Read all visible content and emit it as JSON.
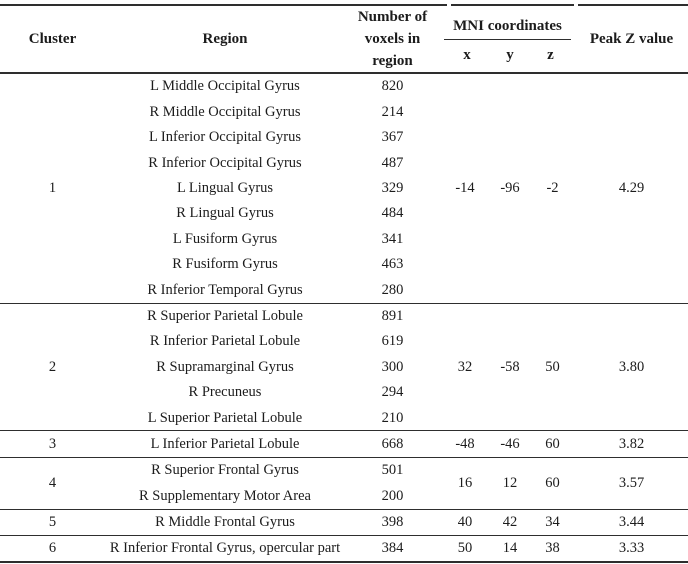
{
  "page": {
    "background": "#ffffff",
    "text_color": "#1c1c1c",
    "line_color": "#2e2e2e"
  },
  "table": {
    "headers": {
      "cluster": "Cluster",
      "region": "Region",
      "voxels_line1": "Number of",
      "voxels_line2": "voxels in region",
      "mni": "MNI coordinates",
      "x": "x",
      "y": "y",
      "z": "z",
      "peak": "Peak Z value"
    },
    "clusters": [
      {
        "cluster": "1",
        "x": "-14",
        "y": "-96",
        "z": "-2",
        "peak": "4.29",
        "regions": [
          {
            "region": "L Middle Occipital Gyrus",
            "voxels": "820"
          },
          {
            "region": "R Middle Occipital Gyrus",
            "voxels": "214"
          },
          {
            "region": "L Inferior Occipital Gyrus",
            "voxels": "367"
          },
          {
            "region": "R Inferior Occipital Gyrus",
            "voxels": "487"
          },
          {
            "region": "L Lingual Gyrus",
            "voxels": "329"
          },
          {
            "region": "R Lingual Gyrus",
            "voxels": "484"
          },
          {
            "region": "L Fusiform Gyrus",
            "voxels": "341"
          },
          {
            "region": "R Fusiform Gyrus",
            "voxels": "463"
          },
          {
            "region": "R Inferior Temporal Gyrus",
            "voxels": "280"
          }
        ]
      },
      {
        "cluster": "2",
        "x": "32",
        "y": "-58",
        "z": "50",
        "peak": "3.80",
        "regions": [
          {
            "region": "R Superior Parietal Lobule",
            "voxels": "891"
          },
          {
            "region": "R Inferior Parietal Lobule",
            "voxels": "619"
          },
          {
            "region": "R Supramarginal Gyrus",
            "voxels": "300"
          },
          {
            "region": "R Precuneus",
            "voxels": "294"
          },
          {
            "region": "L Superior Parietal Lobule",
            "voxels": "210"
          }
        ]
      },
      {
        "cluster": "3",
        "x": "-48",
        "y": "-46",
        "z": "60",
        "peak": "3.82",
        "regions": [
          {
            "region": "L Inferior Parietal Lobule",
            "voxels": "668"
          }
        ]
      },
      {
        "cluster": "4",
        "x": "16",
        "y": "12",
        "z": "60",
        "peak": "3.57",
        "regions": [
          {
            "region": "R Superior Frontal Gyrus",
            "voxels": "501"
          },
          {
            "region": "R Supplementary Motor Area",
            "voxels": "200"
          }
        ]
      },
      {
        "cluster": "5",
        "x": "40",
        "y": "42",
        "z": "34",
        "peak": "3.44",
        "regions": [
          {
            "region": "R Middle Frontal Gyrus",
            "voxels": "398"
          }
        ]
      },
      {
        "cluster": "6",
        "x": "50",
        "y": "14",
        "z": "38",
        "peak": "3.33",
        "regions": [
          {
            "region": "R Inferior Frontal Gyrus, opercular part",
            "voxels": "384"
          }
        ]
      }
    ]
  }
}
